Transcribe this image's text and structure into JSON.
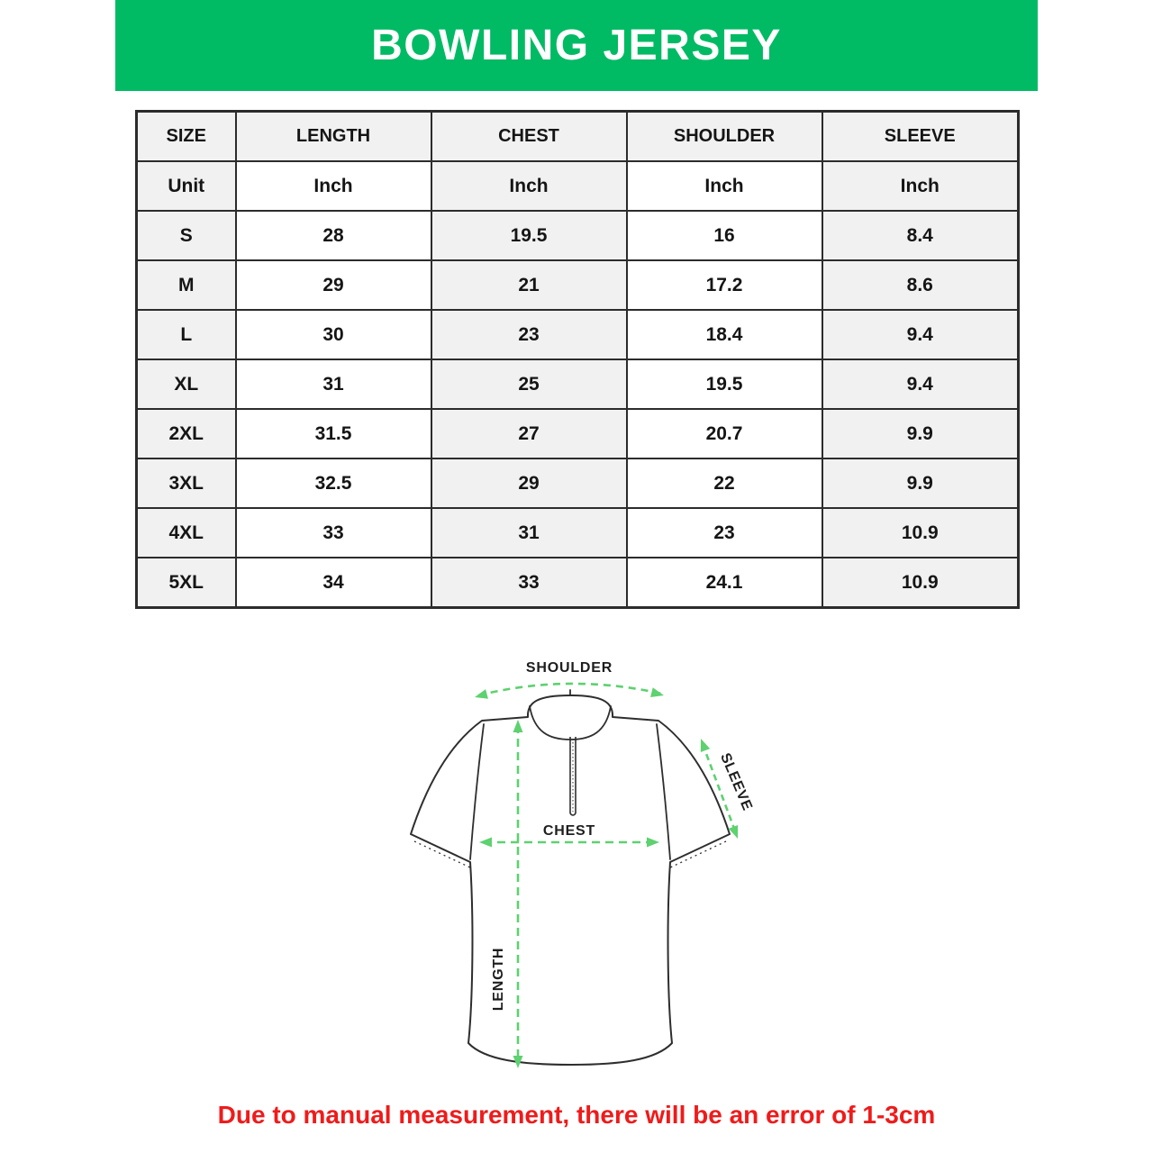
{
  "banner": {
    "title": "BOWLING JERSEY",
    "bg_color": "#00ba64"
  },
  "table": {
    "columns": [
      "SIZE",
      "LENGTH",
      "CHEST",
      "SHOULDER",
      "SLEEVE"
    ],
    "unit_row": [
      "Unit",
      "Inch",
      "Inch",
      "Inch",
      "Inch"
    ],
    "rows": [
      [
        "S",
        "28",
        "19.5",
        "16",
        "8.4"
      ],
      [
        "M",
        "29",
        "21",
        "17.2",
        "8.6"
      ],
      [
        "L",
        "30",
        "23",
        "18.4",
        "9.4"
      ],
      [
        "XL",
        "31",
        "25",
        "19.5",
        "9.4"
      ],
      [
        "2XL",
        "31.5",
        "27",
        "20.7",
        "9.9"
      ],
      [
        "3XL",
        "32.5",
        "29",
        "22",
        "9.9"
      ],
      [
        "4XL",
        "33",
        "31",
        "23",
        "10.9"
      ],
      [
        "5XL",
        "34",
        "33",
        "24.1",
        "10.9"
      ]
    ]
  },
  "diagram": {
    "labels": {
      "shoulder": "SHOULDER",
      "sleeve": "SLEEVE",
      "chest": "CHEST",
      "length": "LENGTH"
    },
    "arrow_color": "#5ed170",
    "outline_color": "#2e2e2e"
  },
  "note": {
    "text": "Due to manual measurement, there will be an error of 1-3cm",
    "color": "#ef1b1b"
  }
}
